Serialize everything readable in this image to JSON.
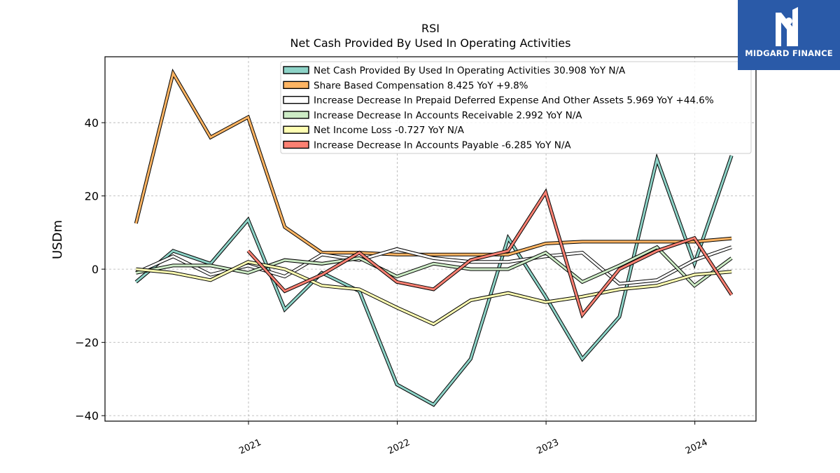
{
  "brand": {
    "name": "MIDGARD FINANCE",
    "bg_color": "#2a5aa8"
  },
  "chart_data": {
    "type": "line",
    "title": "RSI",
    "subtitle": "Net Cash Provided By Used In Operating Activities",
    "xlabel": "",
    "ylabel": "USDm",
    "ylim": [
      -41.5,
      58
    ],
    "xlim": [
      "2020-01-15",
      "2024-05-30"
    ],
    "yticks": [
      -40,
      -20,
      0,
      20,
      40
    ],
    "ytick_labels": [
      "−40",
      "−20",
      "0",
      "20",
      "40"
    ],
    "xticks": [
      "2021-01-01",
      "2022-01-01",
      "2023-01-01",
      "2024-01-01"
    ],
    "xtick_labels": [
      "2021",
      "2022",
      "2023",
      "2024"
    ],
    "grid": true,
    "legend_position": "top-right",
    "x": [
      "2020-03-31",
      "2020-06-30",
      "2020-09-30",
      "2020-12-31",
      "2021-03-31",
      "2021-06-30",
      "2021-09-30",
      "2021-12-31",
      "2022-03-31",
      "2022-06-30",
      "2022-09-30",
      "2022-12-31",
      "2023-03-31",
      "2023-06-30",
      "2023-09-30",
      "2023-12-31",
      "2024-03-31"
    ],
    "series": [
      {
        "name": "Net Cash Provided By Used In Operating Activities",
        "legend": "Net Cash Provided By Used In Operating Activities  30.908 YoY N/A",
        "color": "#8dd3c7",
        "values": [
          -3.5,
          5,
          1.5,
          13.5,
          -11,
          -1,
          -6,
          -31.5,
          -37,
          -24.5,
          8.5,
          -7.5,
          -24.5,
          -13,
          30,
          1.5,
          31
        ]
      },
      {
        "name": "Share Based Compensation",
        "legend": "Share Based Compensation  8.425 YoY +9.8%",
        "color": "#fdb462",
        "values": [
          12.5,
          53.5,
          36,
          41.5,
          11.5,
          4.5,
          4.5,
          4,
          4,
          4,
          4,
          7,
          7.5,
          7.5,
          7.5,
          7.5,
          8.4
        ]
      },
      {
        "name": "Increase Decrease In Prepaid Deferred Expense And Other Assets",
        "legend": "Increase Decrease In Prepaid Deferred Expense And Other Assets  5.969 YoY +44.6%",
        "color": "#ffffff",
        "values": [
          -1,
          3.5,
          -1.5,
          1,
          -2,
          4,
          2.5,
          5.5,
          3,
          2,
          2,
          3.5,
          4.5,
          -4,
          -3,
          2.5,
          6
        ]
      },
      {
        "name": "Increase Decrease In Accounts Receivable",
        "legend": "Increase Decrease In Accounts Receivable  2.992 YoY N/A",
        "color": "#ccebc5",
        "values": [
          -1,
          1,
          1,
          -1,
          2.5,
          1.5,
          3,
          -2,
          1.5,
          0,
          0,
          4.5,
          -3.5,
          1,
          6,
          -4.5,
          3
        ]
      },
      {
        "name": "Net Income Loss",
        "legend": "Net Income Loss  -0.727 YoY N/A",
        "color": "#ffffb3",
        "values": [
          0,
          -1,
          -3,
          2,
          0,
          -4.5,
          -5.5,
          -10.5,
          -15,
          -8.5,
          -6.5,
          -9,
          -7.5,
          -5.5,
          -4.5,
          -1.5,
          -0.7
        ]
      },
      {
        "name": "Increase Decrease In Accounts Payable",
        "legend": "Increase Decrease In Accounts Payable  -6.285 YoY N/A",
        "color": "#fb8072",
        "values": [
          null,
          null,
          null,
          5,
          -6,
          -1.5,
          4.5,
          -3.5,
          -5.5,
          2.5,
          5,
          21,
          -12.5,
          0,
          5,
          8.5,
          -7
        ]
      }
    ]
  }
}
